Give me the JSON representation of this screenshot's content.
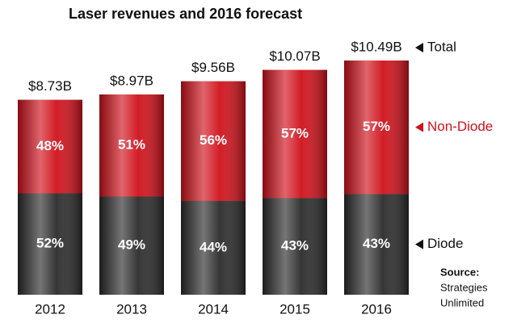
{
  "chart_data": {
    "type": "stacked_bar",
    "title": "Laser revenues and 2016 forecast",
    "categories": [
      "2012",
      "2013",
      "2014",
      "2015",
      "2016"
    ],
    "totals": {
      "name": "Total",
      "values": [
        8.73,
        8.97,
        9.56,
        10.07,
        10.49
      ],
      "value_labels": [
        "$8.73B",
        "$8.97B",
        "$9.56B",
        "$10.07B",
        "$10.49B"
      ]
    },
    "series": [
      {
        "name": "Diode",
        "color": "#2b2b2b",
        "values": [
          52,
          49,
          44,
          43,
          43
        ],
        "value_labels": [
          "52%",
          "49%",
          "44%",
          "43%",
          "43%"
        ]
      },
      {
        "name": "Non-Diode",
        "color": "#d0111b",
        "values": [
          48,
          51,
          56,
          57,
          57
        ],
        "value_labels": [
          "48%",
          "51%",
          "56%",
          "57%",
          "57%"
        ]
      }
    ],
    "source_label": "Source:",
    "source": [
      "Strategies",
      "Unlimited"
    ]
  }
}
